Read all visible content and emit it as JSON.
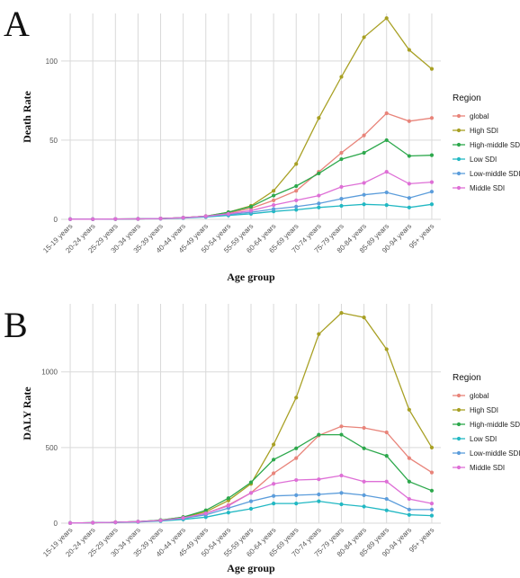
{
  "chart_data": [
    {
      "type": "line",
      "panel_label": "A",
      "xlabel": "Age group",
      "ylabel": "Death Rate",
      "ylim": [
        0,
        130
      ],
      "yticks": [
        0,
        50,
        100
      ],
      "grid": true,
      "legend": {
        "title": "Region",
        "position": "right"
      },
      "categories": [
        "15-19 years",
        "20-24 years",
        "25-29 years",
        "30-34 years",
        "35-39 years",
        "40-44 years",
        "45-49 years",
        "50-54 years",
        "55-59 years",
        "60-64 years",
        "65-69 years",
        "70-74 years",
        "75-79 years",
        "80-84 years",
        "85-89 years",
        "90-94 years",
        "95+ years"
      ],
      "series": [
        {
          "name": "global",
          "color": "#E8847A",
          "values": [
            0.1,
            0.1,
            0.2,
            0.3,
            0.5,
            1.0,
            2.0,
            4.0,
            7.0,
            12.0,
            18.0,
            30.0,
            42.0,
            53.0,
            67.0,
            62.0,
            64.0
          ]
        },
        {
          "name": "High SDI",
          "color": "#A8A024",
          "values": [
            0.1,
            0.1,
            0.2,
            0.3,
            0.5,
            1.0,
            2.0,
            4.5,
            8.5,
            18.0,
            35.0,
            64.0,
            90.0,
            115.0,
            127.0,
            107.0,
            95.0
          ]
        },
        {
          "name": "High-middle SDI",
          "color": "#2DA84C",
          "values": [
            0.1,
            0.1,
            0.2,
            0.3,
            0.5,
            1.0,
            2.0,
            4.5,
            8.0,
            15.0,
            21.0,
            29.0,
            38.0,
            42.0,
            50.0,
            40.0,
            40.5
          ]
        },
        {
          "name": "Low SDI",
          "color": "#22B8C3",
          "values": [
            0.1,
            0.1,
            0.2,
            0.3,
            0.4,
            0.8,
            1.5,
            2.5,
            3.5,
            5.0,
            6.0,
            7.5,
            8.5,
            9.5,
            9.0,
            7.5,
            9.5
          ]
        },
        {
          "name": "Low-middle SDI",
          "color": "#5C9DDB",
          "values": [
            0.1,
            0.1,
            0.2,
            0.3,
            0.5,
            1.0,
            1.8,
            3.0,
            4.5,
            6.5,
            8.0,
            10.0,
            13.0,
            15.5,
            17.0,
            13.5,
            17.5
          ]
        },
        {
          "name": "Middle SDI",
          "color": "#DE6FD6",
          "values": [
            0.1,
            0.1,
            0.2,
            0.3,
            0.5,
            1.0,
            2.0,
            3.5,
            5.5,
            9.0,
            12.0,
            15.0,
            20.5,
            23.0,
            30.0,
            22.5,
            23.5
          ]
        }
      ]
    },
    {
      "type": "line",
      "panel_label": "B",
      "xlabel": "Age group",
      "ylabel": "DALY Rate",
      "ylim": [
        0,
        1450
      ],
      "yticks": [
        0,
        500,
        1000
      ],
      "grid": true,
      "legend": {
        "title": "Region",
        "position": "right"
      },
      "categories": [
        "15-19 years",
        "20-24 years",
        "25-29 years",
        "30-34 years",
        "35-39 years",
        "40-44 years",
        "45-49 years",
        "50-54 years",
        "55-59 years",
        "60-64 years",
        "65-69 years",
        "70-74 years",
        "75-79 years",
        "80-84 years",
        "85-89 years",
        "90-94 years",
        "95+ years"
      ],
      "series": [
        {
          "name": "global",
          "color": "#E8847A",
          "values": [
            1,
            3,
            6,
            10,
            18,
            35,
            65,
            120,
            200,
            330,
            430,
            580,
            640,
            630,
            600,
            430,
            335
          ]
        },
        {
          "name": "High SDI",
          "color": "#A8A024",
          "values": [
            1,
            3,
            6,
            10,
            20,
            40,
            75,
            150,
            260,
            520,
            830,
            1250,
            1390,
            1360,
            1150,
            750,
            500
          ]
        },
        {
          "name": "High-middle SDI",
          "color": "#2DA84C",
          "values": [
            1,
            3,
            6,
            10,
            20,
            40,
            85,
            165,
            270,
            420,
            495,
            585,
            585,
            495,
            445,
            275,
            215
          ]
        },
        {
          "name": "Low SDI",
          "color": "#22B8C3",
          "values": [
            1,
            3,
            5,
            8,
            14,
            25,
            40,
            70,
            95,
            130,
            130,
            145,
            125,
            110,
            85,
            55,
            50
          ]
        },
        {
          "name": "Low-middle SDI",
          "color": "#5C9DDB",
          "values": [
            1,
            3,
            6,
            10,
            18,
            32,
            55,
            100,
            145,
            180,
            185,
            190,
            200,
            185,
            160,
            90,
            90
          ]
        },
        {
          "name": "Middle SDI",
          "color": "#DE6FD6",
          "values": [
            1,
            3,
            6,
            10,
            18,
            35,
            65,
            115,
            200,
            260,
            285,
            290,
            315,
            275,
            275,
            160,
            130
          ]
        }
      ]
    }
  ]
}
